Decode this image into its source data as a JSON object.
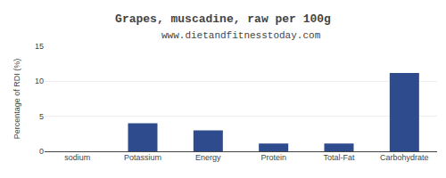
{
  "chart_data": {
    "type": "bar",
    "title": "Grapes, muscadine, raw per 100g",
    "subtitle": "www.dietandfitnesstoday.com",
    "categories": [
      "sodium",
      "Potassium",
      "Energy",
      "Protein",
      "Total-Fat",
      "Carbohydrate"
    ],
    "values": [
      0,
      4.0,
      3.0,
      1.1,
      1.1,
      11.2
    ],
    "color": "#2e4b8e",
    "ylabel": "Percentage of RDI (%)",
    "ylim": [
      0,
      15
    ],
    "yticks": [
      0,
      5,
      10,
      15
    ],
    "grid": true
  }
}
